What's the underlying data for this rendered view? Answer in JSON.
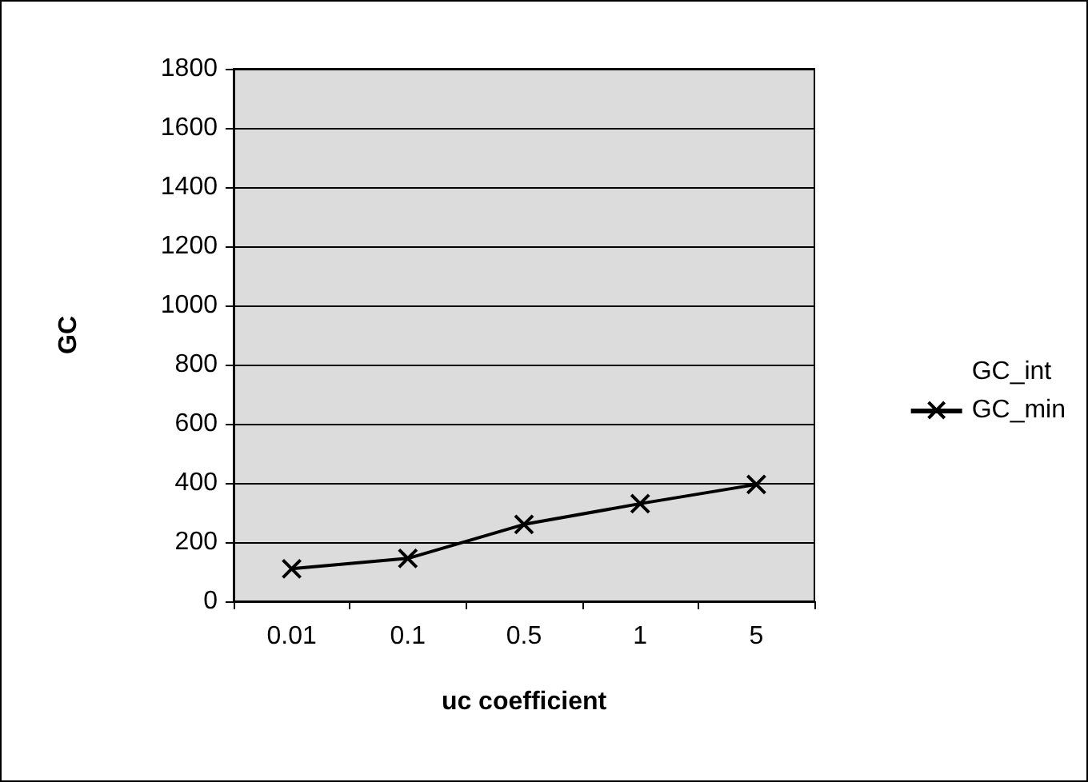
{
  "chart_data": {
    "type": "line",
    "xlabel": "uc coefficient",
    "ylabel": "GC",
    "categories": [
      "0.01",
      "0.1",
      "0.5",
      "1",
      "5"
    ],
    "series": [
      {
        "name": "GC_int",
        "values": [
          null,
          null,
          null,
          null,
          null
        ]
      },
      {
        "name": "GC_min",
        "color": "#000000",
        "values": [
          110,
          145,
          260,
          330,
          395
        ]
      }
    ],
    "ylim": [
      0,
      1800
    ],
    "yticks": [
      0,
      200,
      400,
      600,
      800,
      1000,
      1200,
      1400,
      1600,
      1800
    ],
    "grid": "y",
    "legend": "right",
    "marker": "cross",
    "line_style": "solid"
  }
}
